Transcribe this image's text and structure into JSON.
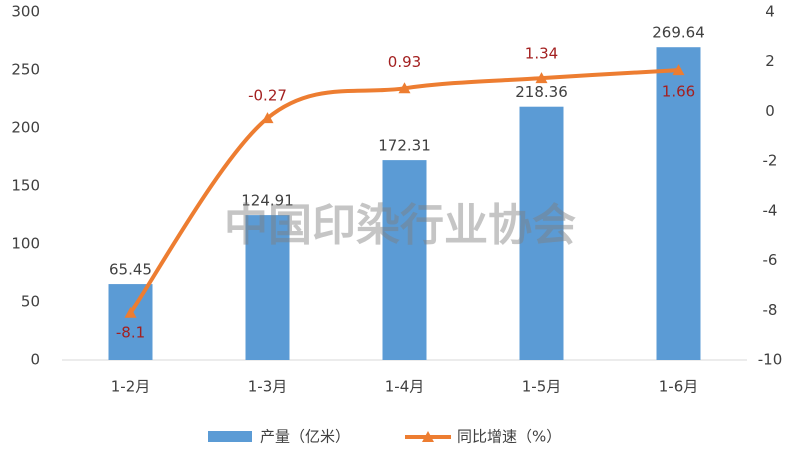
{
  "chart_data": {
    "type": "bar-line",
    "categories": [
      "1-2月",
      "1-3月",
      "1-4月",
      "1-5月",
      "1-6月"
    ],
    "series": [
      {
        "name": "产量（亿米）",
        "color": "#5b9bd5",
        "type": "bar",
        "values": [
          65.45,
          124.91,
          172.31,
          218.36,
          269.64
        ]
      },
      {
        "name": "同比增速（%）",
        "color": "#ed7d31",
        "type": "line",
        "axis": "y2",
        "values": [
          -8.1,
          -0.27,
          0.93,
          1.34,
          1.66
        ]
      }
    ],
    "ylim": [
      0,
      300
    ],
    "yticks": [
      0,
      50,
      100,
      150,
      200,
      250,
      300
    ],
    "y2lim": [
      -10,
      4
    ],
    "y2ticks": [
      -10,
      -8,
      -6,
      -4,
      -2,
      0,
      2,
      4
    ],
    "grid": false,
    "legend": "bottom",
    "watermark": "中国印染行业协会"
  }
}
